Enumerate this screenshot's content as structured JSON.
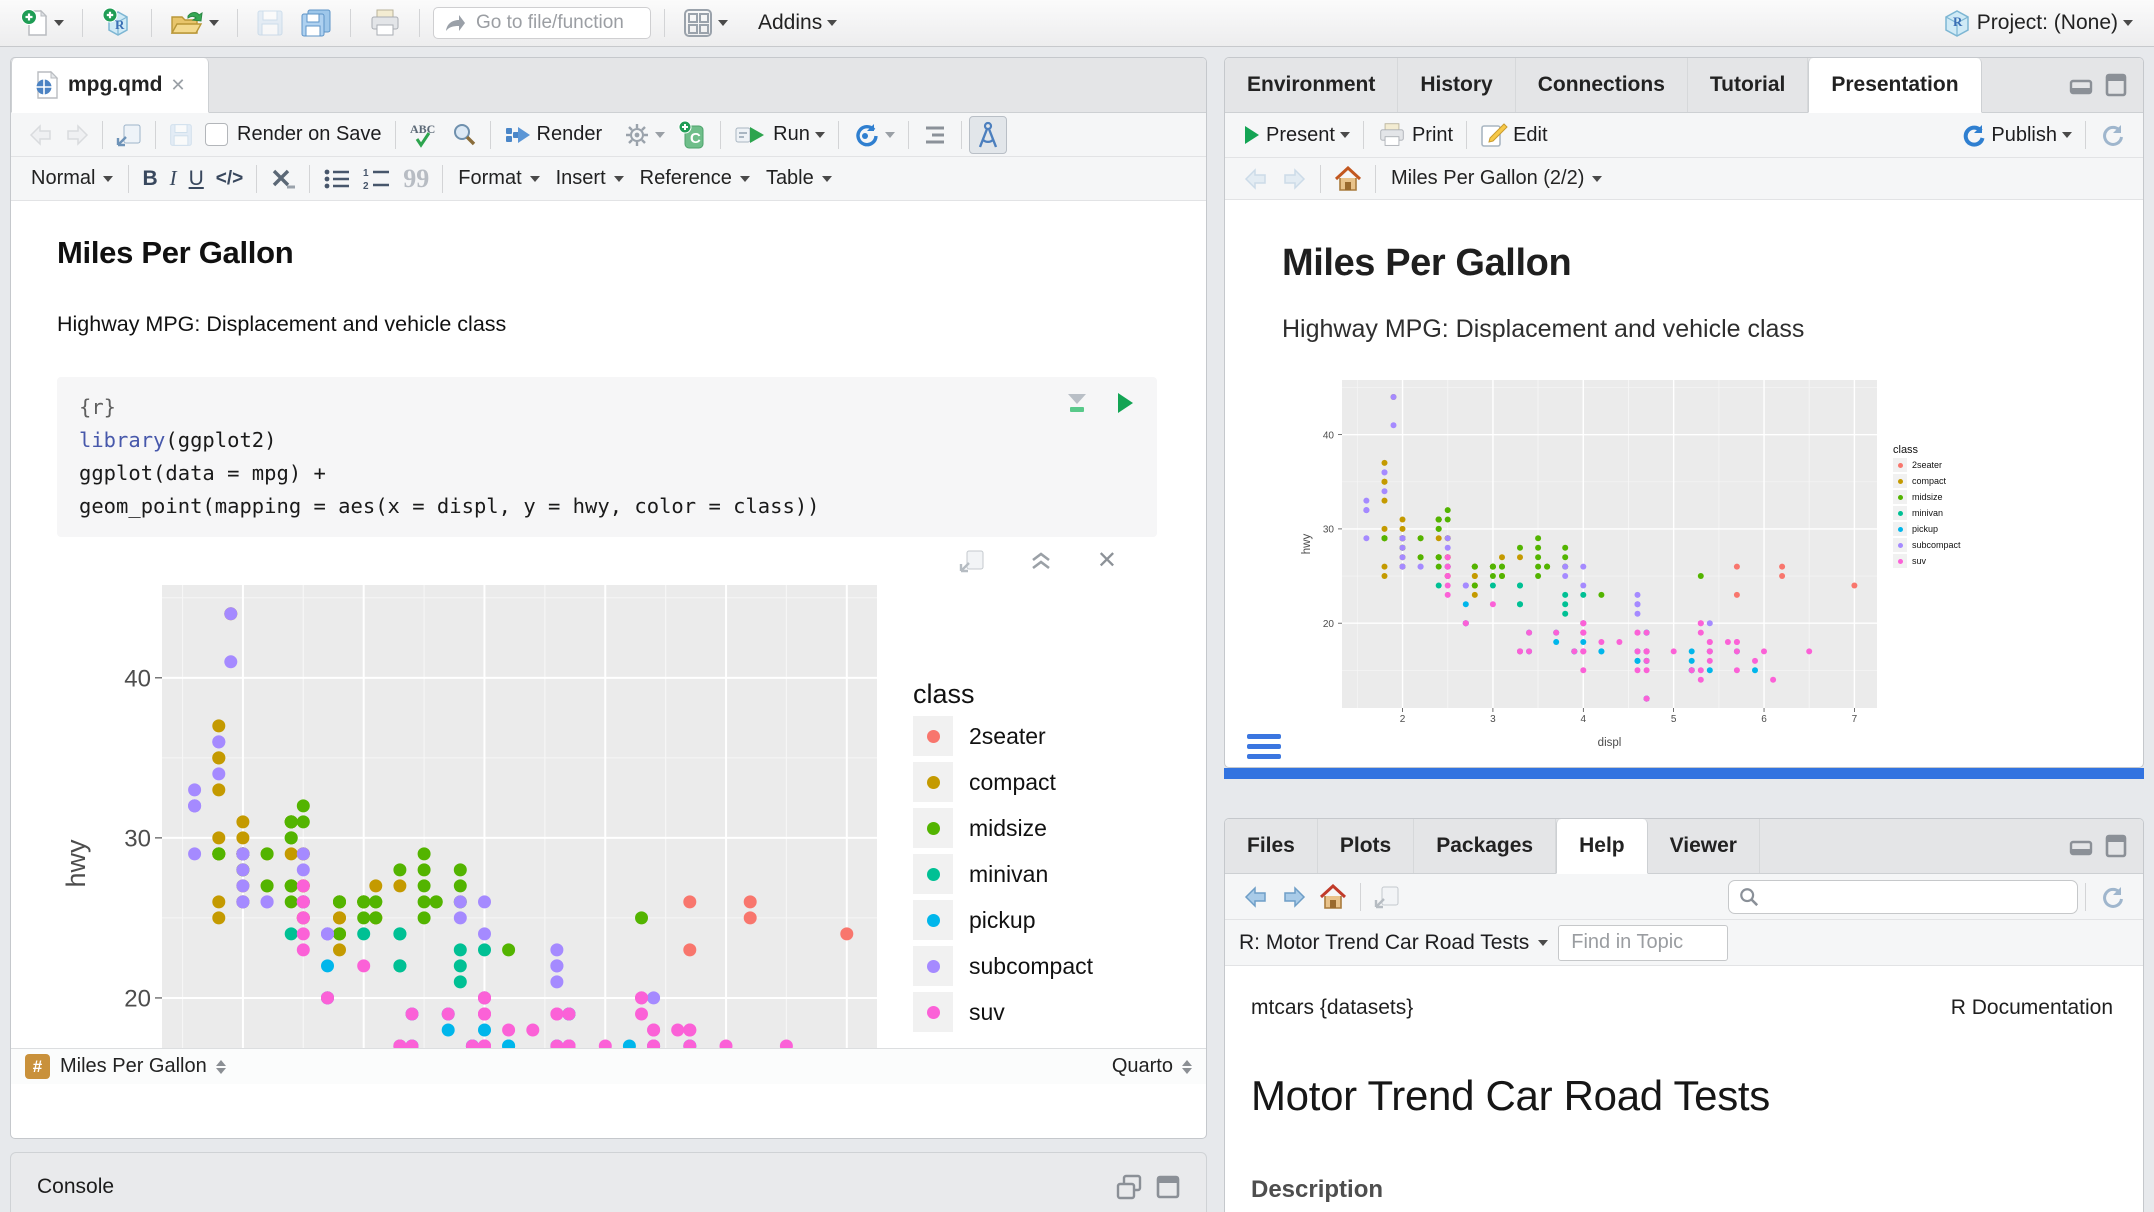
{
  "toolbar": {
    "go_to_placeholder": "Go to file/function",
    "addins": "Addins",
    "project": "Project: (None)"
  },
  "editor": {
    "tab_title": "mpg.qmd",
    "toolbar": {
      "render_on_save": "Render on Save",
      "render": "Render",
      "run": "Run"
    },
    "format_bar": {
      "style": "Normal",
      "menus": [
        "Format",
        "Insert",
        "Reference",
        "Table"
      ]
    },
    "doc": {
      "title": "Miles Per Gallon",
      "subtitle": "Highway MPG: Displacement and vehicle class"
    },
    "chunk": {
      "lines": [
        [
          {
            "text": "{r}",
            "color": "#5f5f5f"
          }
        ],
        [
          {
            "text": "library",
            "color": "#4758AB"
          },
          {
            "text": "(ggplot2)"
          }
        ],
        [
          {
            "text": "ggplot(data = mpg) +"
          }
        ],
        [
          {
            "text": "  geom_point(mapping = aes(x = displ, y = hwy, color = class))"
          }
        ]
      ]
    },
    "status": {
      "left": "Miles Per Gallon",
      "right": "Quarto"
    }
  },
  "console": {
    "title": "Console"
  },
  "top_right": {
    "tabs": [
      "Environment",
      "History",
      "Connections",
      "Tutorial",
      "Presentation"
    ],
    "active_tab": "Presentation",
    "toolbar": {
      "present": "Present",
      "print": "Print",
      "edit": "Edit",
      "publish": "Publish"
    },
    "nav": {
      "slide": "Miles Per Gallon (2/2)"
    },
    "slide": {
      "title": "Miles Per Gallon",
      "subtitle": "Highway MPG: Displacement and vehicle class"
    }
  },
  "bottom_right": {
    "tabs": [
      "Files",
      "Plots",
      "Packages",
      "Help",
      "Viewer"
    ],
    "active_tab": "Help",
    "help": {
      "topic": "R: Motor Trend Car Road Tests",
      "find_placeholder": "Find in Topic",
      "header_left": "mtcars {datasets}",
      "header_right": "R Documentation",
      "title": "Motor Trend Car Road Tests",
      "section": "Description"
    }
  },
  "icons": {
    "new-file-icon": "page with green plus",
    "new-project-icon": "R cube with green plus",
    "open-icon": "folder with arrow",
    "save-icon": "floppy disk",
    "print-icon": "printer",
    "grid-icon": "pane layout grid",
    "search-icon": "magnifier",
    "home-icon": "house",
    "refresh-icon": "circular arrow",
    "visual-editor-icon": "drafting compass",
    "run-chunk-icon": "green play triangle"
  },
  "colors": {
    "panel_bg": "#EBEBEB",
    "divider_blue": "#3273e0",
    "status_hash": "#c9913b"
  },
  "chart_data": {
    "type": "scatter",
    "title": "",
    "xlabel": "displ",
    "ylabel": "hwy",
    "legend_title": "class",
    "x_ticks": [
      2,
      3,
      4,
      5,
      6,
      7
    ],
    "y_ticks": [
      20,
      30,
      40
    ],
    "x_range": [
      1.33,
      7.25
    ],
    "y_range": [
      11,
      45.8
    ],
    "grid": true,
    "legend_position": "right",
    "series": [
      {
        "name": "2seater",
        "color": "#F8766D",
        "points": [
          [
            5.7,
            26
          ],
          [
            5.7,
            23
          ],
          [
            6.2,
            26
          ],
          [
            6.2,
            25
          ],
          [
            7.0,
            24
          ]
        ]
      },
      {
        "name": "compact",
        "color": "#C49A00",
        "points": [
          [
            1.8,
            29
          ],
          [
            1.8,
            29
          ],
          [
            2.0,
            31
          ],
          [
            2.0,
            30
          ],
          [
            2.8,
            26
          ],
          [
            2.8,
            26
          ],
          [
            3.1,
            27
          ],
          [
            1.8,
            26
          ],
          [
            1.8,
            25
          ],
          [
            2.0,
            28
          ],
          [
            2.0,
            27
          ],
          [
            2.8,
            25
          ],
          [
            2.8,
            25
          ],
          [
            3.1,
            25
          ],
          [
            3.1,
            25
          ],
          [
            2.4,
            29
          ],
          [
            2.4,
            27
          ],
          [
            2.5,
            25
          ],
          [
            2.5,
            27
          ],
          [
            2.5,
            25
          ],
          [
            2.5,
            27
          ],
          [
            2.2,
            27
          ],
          [
            2.2,
            29
          ],
          [
            2.4,
            31
          ],
          [
            2.4,
            31
          ],
          [
            3.0,
            26
          ],
          [
            3.3,
            27
          ],
          [
            1.8,
            30
          ],
          [
            1.8,
            33
          ],
          [
            1.8,
            35
          ],
          [
            1.8,
            37
          ],
          [
            1.8,
            35
          ],
          [
            2.0,
            29
          ],
          [
            2.0,
            26
          ],
          [
            2.0,
            29
          ],
          [
            2.0,
            29
          ],
          [
            2.8,
            24
          ],
          [
            1.9,
            44
          ],
          [
            2.0,
            29
          ],
          [
            2.0,
            26
          ],
          [
            2.0,
            29
          ],
          [
            2.0,
            29
          ],
          [
            2.5,
            29
          ],
          [
            2.5,
            29
          ],
          [
            2.8,
            23
          ],
          [
            2.8,
            24
          ]
        ]
      },
      {
        "name": "midsize",
        "color": "#53B400",
        "points": [
          [
            2.8,
            24
          ],
          [
            3.1,
            25
          ],
          [
            4.2,
            23
          ],
          [
            2.4,
            27
          ],
          [
            2.4,
            30
          ],
          [
            3.1,
            26
          ],
          [
            3.5,
            29
          ],
          [
            3.6,
            26
          ],
          [
            2.4,
            26
          ],
          [
            2.4,
            27
          ],
          [
            2.4,
            30
          ],
          [
            2.4,
            31
          ],
          [
            2.5,
            26
          ],
          [
            2.5,
            26
          ],
          [
            3.3,
            28
          ],
          [
            2.5,
            31
          ],
          [
            2.5,
            32
          ],
          [
            3.5,
            27
          ],
          [
            3.5,
            26
          ],
          [
            3.0,
            26
          ],
          [
            3.0,
            25
          ],
          [
            3.5,
            25
          ],
          [
            3.1,
            26
          ],
          [
            3.8,
            26
          ],
          [
            3.8,
            27
          ],
          [
            3.8,
            28
          ],
          [
            5.3,
            25
          ],
          [
            2.2,
            29
          ],
          [
            2.2,
            27
          ],
          [
            2.4,
            31
          ],
          [
            2.4,
            31
          ],
          [
            3.0,
            26
          ],
          [
            3.0,
            26
          ],
          [
            3.5,
            28
          ],
          [
            1.8,
            29
          ],
          [
            1.8,
            29
          ],
          [
            2.0,
            28
          ],
          [
            2.0,
            29
          ],
          [
            2.8,
            26
          ],
          [
            2.8,
            26
          ],
          [
            3.6,
            26
          ]
        ]
      },
      {
        "name": "minivan",
        "color": "#00C094",
        "points": [
          [
            2.4,
            24
          ],
          [
            3.0,
            24
          ],
          [
            3.3,
            22
          ],
          [
            3.3,
            22
          ],
          [
            3.3,
            24
          ],
          [
            3.3,
            24
          ],
          [
            3.3,
            17
          ],
          [
            3.8,
            22
          ],
          [
            3.8,
            21
          ],
          [
            3.8,
            23
          ],
          [
            4.0,
            23
          ]
        ]
      },
      {
        "name": "pickup",
        "color": "#00B6EB",
        "points": [
          [
            3.7,
            19
          ],
          [
            3.7,
            18
          ],
          [
            3.9,
            17
          ],
          [
            3.9,
            17
          ],
          [
            4.7,
            19
          ],
          [
            4.7,
            19
          ],
          [
            4.7,
            12
          ],
          [
            5.2,
            17
          ],
          [
            5.2,
            15
          ],
          [
            4.7,
            16
          ],
          [
            4.7,
            12
          ],
          [
            4.7,
            17
          ],
          [
            4.7,
            17
          ],
          [
            4.7,
            16
          ],
          [
            4.7,
            12
          ],
          [
            5.2,
            15
          ],
          [
            5.2,
            16
          ],
          [
            5.7,
            17
          ],
          [
            5.9,
            15
          ],
          [
            4.2,
            17
          ],
          [
            4.2,
            17
          ],
          [
            4.6,
            16
          ],
          [
            4.6,
            16
          ],
          [
            4.6,
            17
          ],
          [
            5.4,
            15
          ],
          [
            5.4,
            17
          ],
          [
            2.7,
            20
          ],
          [
            2.7,
            20
          ],
          [
            2.7,
            22
          ],
          [
            3.4,
            17
          ],
          [
            3.4,
            19
          ],
          [
            4.0,
            18
          ],
          [
            4.0,
            20
          ]
        ]
      },
      {
        "name": "subcompact",
        "color": "#A58AFF",
        "points": [
          [
            3.8,
            26
          ],
          [
            3.8,
            25
          ],
          [
            4.0,
            26
          ],
          [
            4.0,
            24
          ],
          [
            4.6,
            21
          ],
          [
            4.6,
            22
          ],
          [
            4.6,
            23
          ],
          [
            4.6,
            22
          ],
          [
            5.4,
            20
          ],
          [
            1.6,
            33
          ],
          [
            1.6,
            32
          ],
          [
            1.6,
            32
          ],
          [
            1.6,
            29
          ],
          [
            1.6,
            32
          ],
          [
            1.8,
            34
          ],
          [
            1.8,
            36
          ],
          [
            1.8,
            36
          ],
          [
            2.0,
            29
          ],
          [
            2.0,
            26
          ],
          [
            2.0,
            29
          ],
          [
            2.0,
            28
          ],
          [
            2.0,
            27
          ],
          [
            2.7,
            24
          ],
          [
            2.7,
            24
          ],
          [
            2.7,
            24
          ],
          [
            2.2,
            26
          ],
          [
            2.2,
            26
          ],
          [
            2.5,
            26
          ],
          [
            2.5,
            26
          ],
          [
            1.9,
            44
          ],
          [
            1.9,
            41
          ],
          [
            2.0,
            29
          ],
          [
            2.0,
            26
          ],
          [
            2.5,
            28
          ],
          [
            2.5,
            29
          ]
        ]
      },
      {
        "name": "suv",
        "color": "#FB61D7",
        "points": [
          [
            5.3,
            20
          ],
          [
            5.3,
            15
          ],
          [
            5.3,
            20
          ],
          [
            5.7,
            17
          ],
          [
            6.0,
            17
          ],
          [
            5.3,
            19
          ],
          [
            5.3,
            14
          ],
          [
            5.7,
            15
          ],
          [
            6.5,
            17
          ],
          [
            3.9,
            17
          ],
          [
            4.7,
            17
          ],
          [
            4.7,
            12
          ],
          [
            4.7,
            17
          ],
          [
            4.7,
            16
          ],
          [
            5.2,
            15
          ],
          [
            5.9,
            16
          ],
          [
            4.6,
            17
          ],
          [
            5.4,
            17
          ],
          [
            5.4,
            18
          ],
          [
            4.0,
            17
          ],
          [
            4.0,
            19
          ],
          [
            4.0,
            17
          ],
          [
            4.0,
            19
          ],
          [
            4.6,
            19
          ],
          [
            3.0,
            22
          ],
          [
            3.7,
            19
          ],
          [
            4.0,
            20
          ],
          [
            4.7,
            17
          ],
          [
            4.7,
            12
          ],
          [
            4.7,
            19
          ],
          [
            5.7,
            18
          ],
          [
            6.1,
            14
          ],
          [
            4.0,
            15
          ],
          [
            4.2,
            18
          ],
          [
            4.4,
            18
          ],
          [
            4.6,
            15
          ],
          [
            5.4,
            17
          ],
          [
            5.4,
            16
          ],
          [
            5.4,
            18
          ],
          [
            4.0,
            17
          ],
          [
            4.0,
            19
          ],
          [
            4.6,
            19
          ],
          [
            5.0,
            17
          ],
          [
            3.3,
            17
          ],
          [
            3.3,
            17
          ],
          [
            4.0,
            20
          ],
          [
            5.6,
            18
          ],
          [
            2.5,
            25
          ],
          [
            2.5,
            24
          ],
          [
            2.5,
            27
          ],
          [
            2.5,
            25
          ],
          [
            2.5,
            26
          ],
          [
            2.5,
            23
          ],
          [
            2.7,
            20
          ],
          [
            2.7,
            20
          ],
          [
            3.4,
            19
          ],
          [
            3.4,
            17
          ],
          [
            4.0,
            20
          ],
          [
            4.7,
            17
          ],
          [
            4.7,
            15
          ],
          [
            5.7,
            18
          ]
        ]
      }
    ]
  }
}
